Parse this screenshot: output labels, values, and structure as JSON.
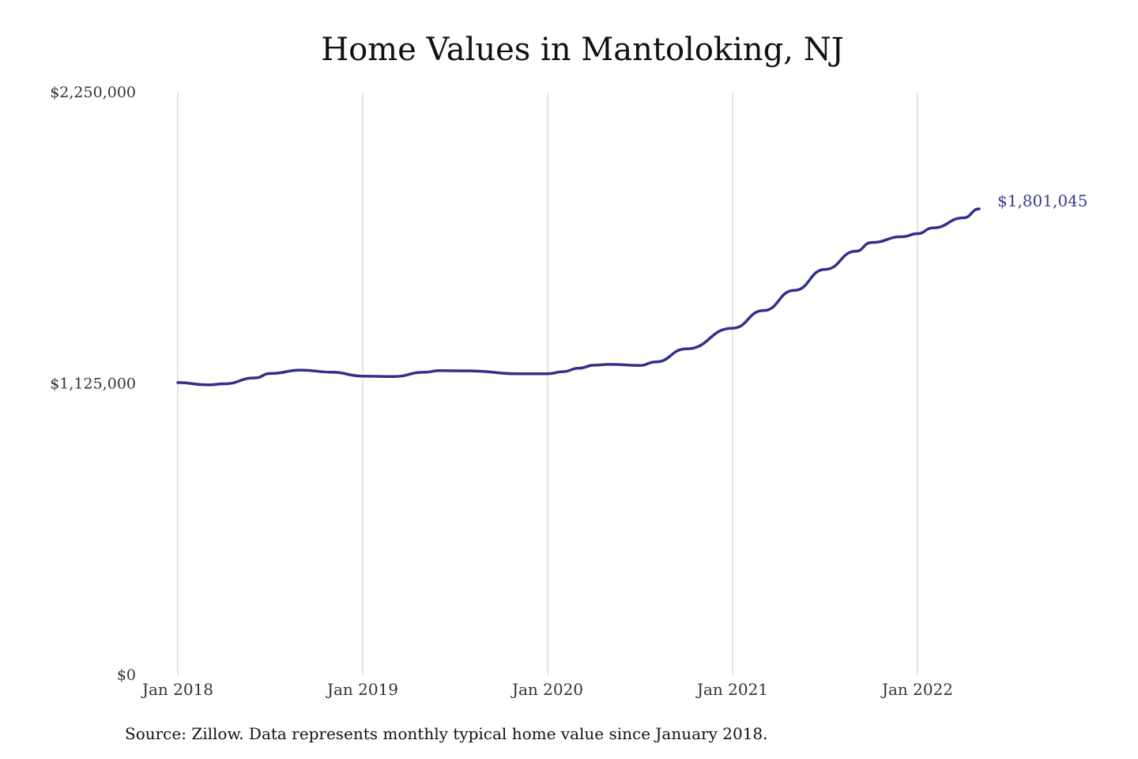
{
  "title": "Home Values in Mantoloking, NJ",
  "source_note": "Source: Zillow. Data represents monthly typical home value since January 2018.",
  "colors": {
    "line": "#33308a",
    "grid": "#c8c8c8",
    "end_label": "#3b3a8c"
  },
  "chart_data": {
    "type": "line",
    "title": "Home Values in Mantoloking, NJ",
    "xlabel": "",
    "ylabel": "",
    "ylim": [
      0,
      2250000
    ],
    "y_ticks": [
      {
        "value": 0,
        "label": "$0"
      },
      {
        "value": 1125000,
        "label": "$1,125,000"
      },
      {
        "value": 2250000,
        "label": "$2,250,000"
      }
    ],
    "x_ticks": [
      {
        "date": "2018-01",
        "label": "Jan 2018"
      },
      {
        "date": "2019-01",
        "label": "Jan 2019"
      },
      {
        "date": "2020-01",
        "label": "Jan 2020"
      },
      {
        "date": "2021-01",
        "label": "Jan 2021"
      },
      {
        "date": "2022-01",
        "label": "Jan 2022"
      }
    ],
    "grid": {
      "vertical": true,
      "horizontal": false
    },
    "end_label": "$1,801,045",
    "series": [
      {
        "points": [
          {
            "date": "2018-01",
            "value": 1130000
          },
          {
            "date": "2018-03",
            "value": 1121000
          },
          {
            "date": "2018-04",
            "value": 1125000
          },
          {
            "date": "2018-06",
            "value": 1148000
          },
          {
            "date": "2018-07",
            "value": 1165000
          },
          {
            "date": "2018-09",
            "value": 1178000
          },
          {
            "date": "2018-11",
            "value": 1170000
          },
          {
            "date": "2019-01",
            "value": 1155000
          },
          {
            "date": "2019-03",
            "value": 1153000
          },
          {
            "date": "2019-05",
            "value": 1170000
          },
          {
            "date": "2019-06",
            "value": 1176000
          },
          {
            "date": "2019-08",
            "value": 1175000
          },
          {
            "date": "2019-11",
            "value": 1164000
          },
          {
            "date": "2020-01",
            "value": 1164000
          },
          {
            "date": "2020-02",
            "value": 1172000
          },
          {
            "date": "2020-03",
            "value": 1185000
          },
          {
            "date": "2020-04",
            "value": 1197000
          },
          {
            "date": "2020-05",
            "value": 1200000
          },
          {
            "date": "2020-07",
            "value": 1196000
          },
          {
            "date": "2020-08",
            "value": 1210000
          },
          {
            "date": "2020-10",
            "value": 1260000
          },
          {
            "date": "2021-01",
            "value": 1340000
          },
          {
            "date": "2021-03",
            "value": 1408000
          },
          {
            "date": "2021-05",
            "value": 1486000
          },
          {
            "date": "2021-07",
            "value": 1567000
          },
          {
            "date": "2021-09",
            "value": 1637000
          },
          {
            "date": "2021-10",
            "value": 1671000
          },
          {
            "date": "2021-12",
            "value": 1693000
          },
          {
            "date": "2022-01",
            "value": 1705000
          },
          {
            "date": "2022-02",
            "value": 1727000
          },
          {
            "date": "2022-04",
            "value": 1766000
          },
          {
            "date": "2022-05",
            "value": 1801045
          }
        ]
      }
    ]
  }
}
